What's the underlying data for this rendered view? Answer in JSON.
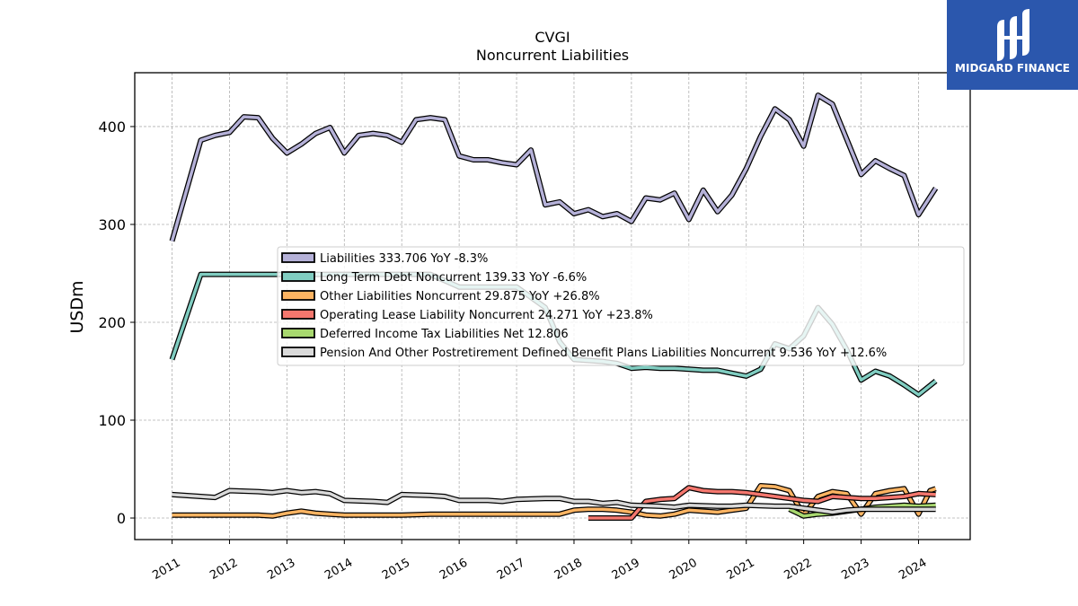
{
  "logo": {
    "text": "MIDGARD FINANCE"
  },
  "chart_data": {
    "type": "line",
    "title": "CVGI",
    "subtitle": "Noncurrent  Liabilities",
    "ylabel": "USDm",
    "xlabel": "",
    "ylim": [
      -22,
      455
    ],
    "xlim": [
      2010.35,
      2024.9
    ],
    "yticks": [
      0,
      100,
      200,
      300,
      400
    ],
    "xticks": [
      2011,
      2012,
      2013,
      2014,
      2015,
      2016,
      2017,
      2018,
      2019,
      2020,
      2021,
      2022,
      2023,
      2024
    ],
    "grid": true,
    "legend_position": "center-right",
    "series": [
      {
        "name": "Liabilities  333.706 YoY -8.3%",
        "color": "#b5b1d8",
        "x": [
          2011.0,
          2011.5,
          2011.75,
          2012.0,
          2012.25,
          2012.5,
          2012.75,
          2013.0,
          2013.25,
          2013.5,
          2013.75,
          2014.0,
          2014.25,
          2014.5,
          2014.75,
          2015.0,
          2015.25,
          2015.5,
          2015.75,
          2016.0,
          2016.25,
          2016.5,
          2016.75,
          2017.0,
          2017.25,
          2017.5,
          2017.75,
          2018.0,
          2018.25,
          2018.5,
          2018.75,
          2019.0,
          2019.25,
          2019.5,
          2019.75,
          2020.0,
          2020.25,
          2020.5,
          2020.75,
          2021.0,
          2021.25,
          2021.5,
          2021.75,
          2022.0,
          2022.25,
          2022.5,
          2022.75,
          2023.0,
          2023.25,
          2023.5,
          2023.75,
          2024.0,
          2024.3
        ],
        "values": [
          283,
          386,
          391,
          394,
          410,
          409,
          388,
          373,
          382,
          393,
          399,
          373,
          391,
          393,
          391,
          384,
          407,
          409,
          407,
          370,
          366,
          366,
          363,
          361,
          376,
          320,
          323,
          311,
          315,
          308,
          311,
          303,
          327,
          325,
          332,
          305,
          335,
          313,
          330,
          357,
          390,
          418,
          407,
          380,
          432,
          423,
          387,
          351,
          365,
          357,
          350,
          310,
          337
        ]
      },
      {
        "name": "Long Term Debt Noncurrent  139.33 YoY -6.6%",
        "color": "#80cdc1",
        "x": [
          2011.0,
          2011.5,
          2011.75,
          2012.0,
          2012.5,
          2013.0,
          2013.5,
          2014.0,
          2014.5,
          2015.0,
          2015.5,
          2016.0,
          2016.5,
          2017.0,
          2017.5,
          2017.75,
          2018.0,
          2018.25,
          2018.5,
          2018.75,
          2019.0,
          2019.25,
          2019.5,
          2019.75,
          2020.0,
          2020.25,
          2020.5,
          2020.75,
          2021.0,
          2021.25,
          2021.5,
          2021.75,
          2022.0,
          2022.25,
          2022.5,
          2022.75,
          2023.0,
          2023.25,
          2023.5,
          2023.75,
          2024.0,
          2024.3
        ],
        "values": [
          162,
          249,
          249,
          249,
          249,
          249,
          249,
          249,
          249,
          249,
          249,
          236,
          236,
          236,
          215,
          180,
          162,
          161,
          160,
          158,
          153,
          154,
          153,
          153,
          152,
          151,
          151,
          148,
          145,
          152,
          178,
          173,
          186,
          215,
          198,
          172,
          141,
          150,
          145,
          136,
          126,
          140
        ]
      },
      {
        "name": "Other Liabilities Noncurrent  29.875 YoY +26.8%",
        "color": "#fdb462",
        "x": [
          2011.0,
          2011.5,
          2012.0,
          2012.5,
          2012.75,
          2013.0,
          2013.25,
          2013.5,
          2013.75,
          2014.0,
          2014.5,
          2015.0,
          2015.5,
          2016.0,
          2016.5,
          2017.0,
          2017.5,
          2017.75,
          2018.0,
          2018.25,
          2018.5,
          2018.75,
          2019.0,
          2019.25,
          2019.5,
          2019.75,
          2020.0,
          2020.25,
          2020.5,
          2020.75,
          2021.0,
          2021.25,
          2021.5,
          2021.75,
          2022.0,
          2022.25,
          2022.5,
          2022.75,
          2023.0,
          2023.25,
          2023.5,
          2023.75,
          2024.0,
          2024.2,
          2024.3
        ],
        "values": [
          3,
          3,
          3,
          3,
          2,
          5,
          7,
          5,
          4,
          3,
          3,
          3,
          4,
          4,
          4,
          4,
          4,
          4,
          8,
          9,
          9,
          8,
          6,
          3,
          2,
          4,
          8,
          7,
          6,
          8,
          10,
          33,
          32,
          28,
          3,
          22,
          27,
          25,
          4,
          25,
          28,
          30,
          4,
          28,
          30
        ]
      },
      {
        "name": "Operating Lease Liability Noncurrent  24.271 YoY +23.8%",
        "color": "#f4776e",
        "x": [
          2018.25,
          2018.5,
          2018.75,
          2019.0,
          2019.25,
          2019.5,
          2019.75,
          2020.0,
          2020.25,
          2020.5,
          2020.75,
          2021.0,
          2021.25,
          2021.5,
          2021.75,
          2022.0,
          2022.25,
          2022.5,
          2022.75,
          2023.0,
          2023.25,
          2023.5,
          2023.75,
          2024.0,
          2024.3
        ],
        "values": [
          0,
          0,
          0,
          0,
          17,
          19,
          20,
          31,
          28,
          27,
          27,
          26,
          24,
          22,
          20,
          18,
          17,
          22,
          21,
          20,
          20,
          21,
          22,
          25,
          24
        ]
      },
      {
        "name": "Deferred Income Tax Liabilities Net  12.806",
        "color": "#a8d86f",
        "x": [
          2021.75,
          2022.0,
          2022.25,
          2022.5,
          2022.75,
          2023.0,
          2023.25,
          2023.5,
          2023.75,
          2024.0,
          2024.3
        ],
        "values": [
          9,
          2,
          4,
          5,
          7,
          9,
          11,
          12,
          13,
          12,
          13
        ]
      },
      {
        "name": "Pension And Other Postretirement Defined Benefit Plans Liabilities Noncurrent  9.536 YoY +12.6%",
        "color": "#d9d9d9",
        "x": [
          2011.0,
          2011.5,
          2011.75,
          2012.0,
          2012.5,
          2012.75,
          2013.0,
          2013.25,
          2013.5,
          2013.75,
          2014.0,
          2014.5,
          2014.75,
          2015.0,
          2015.5,
          2015.75,
          2016.0,
          2016.5,
          2016.75,
          2017.0,
          2017.5,
          2017.75,
          2018.0,
          2018.25,
          2018.5,
          2018.75,
          2019.0,
          2019.5,
          2019.75,
          2020.0,
          2020.5,
          2020.75,
          2021.0,
          2021.5,
          2021.75,
          2022.0,
          2022.5,
          2022.75,
          2023.0,
          2023.5,
          2023.75,
          2024.0,
          2024.3
        ],
        "values": [
          24,
          22,
          21,
          28,
          27,
          26,
          28,
          26,
          27,
          25,
          18,
          17,
          16,
          24,
          23,
          22,
          18,
          18,
          17,
          19,
          20,
          20,
          17,
          17,
          15,
          16,
          13,
          12,
          11,
          13,
          12,
          12,
          13,
          12,
          12,
          10,
          6,
          8,
          9,
          9,
          9,
          9,
          9
        ]
      }
    ]
  }
}
